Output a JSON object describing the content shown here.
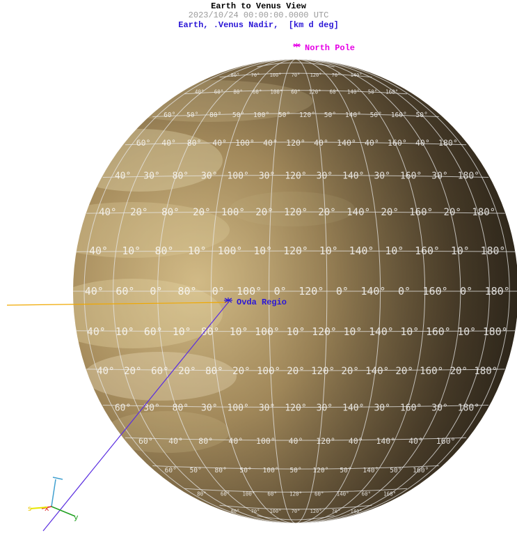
{
  "header": {
    "title": "Earth to Venus View",
    "epoch": "2023/10/24 00:00:00.0000 UTC",
    "frame": "Earth, .Venus Nadir,  [km d deg]"
  },
  "markers": {
    "north_pole": "North Pole",
    "ovda_regio": "Ovda Regio"
  },
  "axes": {
    "x_label": "x",
    "y_label": "y",
    "s_label": "s"
  },
  "colors": {
    "title": "#000000",
    "epoch": "#9a9a9a",
    "frame": "#2a16d6",
    "north_pole": "#e600e6",
    "ovda_regio": "#2a16d6",
    "sun_line": "#f0a800",
    "nadir_line": "#5a2ee0",
    "axis_x": "#e02020",
    "axis_y": "#20a020",
    "axis_z": "#40a0d0",
    "axis_s": "#e8e800"
  },
  "grid_labels": {
    "rows": [
      [
        "80°",
        "70°",
        "100°",
        "70°",
        "120°",
        "70°",
        "140°"
      ],
      [
        "40°",
        "60°",
        "80°",
        "60°",
        "100°",
        "60°",
        "120°",
        "60°",
        "140°",
        "50°",
        "160°"
      ],
      [
        "60°",
        "50°",
        "80°",
        "50°",
        "100°",
        "50°",
        "120°",
        "50°",
        "140°",
        "50°",
        "160°",
        "50°"
      ],
      [
        "60°",
        "40°",
        "80°",
        "40°",
        "100°",
        "40°",
        "120°",
        "40°",
        "140°",
        "40°",
        "160°",
        "40°",
        "180°"
      ],
      [
        "40°",
        "30°",
        "80°",
        "30°",
        "100°",
        "30°",
        "120°",
        "30°",
        "140°",
        "30°",
        "160°",
        "30°",
        "180°"
      ],
      [
        "40°",
        "20°",
        "80°",
        "20°",
        "100°",
        "20°",
        "120°",
        "20°",
        "140°",
        "20°",
        "160°",
        "20°",
        "180°"
      ],
      [
        "40°",
        "10°",
        "80°",
        "10°",
        "100°",
        "10°",
        "120°",
        "10°",
        "140°",
        "10°",
        "160°",
        "10°",
        "180°"
      ],
      [
        "40°",
        "60°",
        "0°",
        "80°",
        "0°",
        "100°",
        "0°",
        "120°",
        "0°",
        "140°",
        "0°",
        "160°",
        "0°",
        "180°"
      ],
      [
        "40°",
        "10°",
        "60°",
        "10°",
        "80°",
        "10°",
        "100°",
        "10°",
        "120°",
        "10°",
        "140°",
        "10°",
        "160°",
        "10°",
        "180°"
      ],
      [
        "40°",
        "20°",
        "60°",
        "20°",
        "80°",
        "20°",
        "100°",
        "20°",
        "120°",
        "20°",
        "140°",
        "20°",
        "160°",
        "20°",
        "180°"
      ],
      [
        "60°",
        "30°",
        "80°",
        "30°",
        "100°",
        "30°",
        "120°",
        "30°",
        "140°",
        "30°",
        "160°",
        "30°",
        "180°"
      ],
      [
        "60°",
        "40°",
        "80°",
        "40°",
        "100°",
        "40°",
        "120°",
        "40°",
        "140°",
        "40°",
        "160°"
      ],
      [
        "60°",
        "50°",
        "80°",
        "50°",
        "100°",
        "50°",
        "120°",
        "50°",
        "140°",
        "50°",
        "160°"
      ],
      [
        "80°",
        "60°",
        "100°",
        "60°",
        "120°",
        "60°",
        "140°",
        "60°",
        "160°"
      ],
      [
        "80°",
        "70°",
        "100°",
        "70°",
        "120°",
        "70°",
        "140°"
      ]
    ]
  }
}
